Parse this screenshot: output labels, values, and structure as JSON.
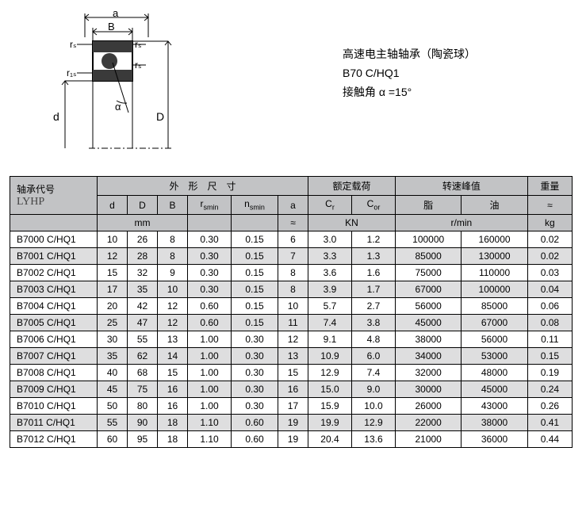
{
  "title": {
    "line1": "高速电主轴轴承（陶瓷球）",
    "line2": "B70  C/HQ1",
    "line3": "接触角 α =15°"
  },
  "diagram_labels": {
    "a": "a",
    "B": "B",
    "rs_tl": "rₛ",
    "rs_tr": "rₛ",
    "r1s": "r₁ₛ",
    "rs_r": "rₛ",
    "d": "d",
    "alpha": "α",
    "D": "D"
  },
  "table": {
    "header": {
      "model_title": "轴承代号",
      "brand": "LYHP",
      "group_dim": "外　形　尺　寸",
      "group_load": "额定载荷",
      "group_speed": "转速峰值",
      "group_weight": "重量",
      "d": "d",
      "D": "D",
      "B": "B",
      "rsmin": "rsmin",
      "nsmin": "nsmin",
      "a": "a",
      "Cr": "Cr",
      "Cor": "Cor",
      "grease": "脂",
      "oil": "油",
      "approx": "≈",
      "mm": "mm",
      "a_approx": "≈",
      "KN": "KN",
      "rpm": "r/min",
      "kg": "kg"
    },
    "rows": [
      {
        "model": "B7000  C/HQ1",
        "d": "10",
        "D": "26",
        "B": "8",
        "rsmin": "0.30",
        "nsmin": "0.15",
        "a": "6",
        "Cr": "3.0",
        "Cor": "1.2",
        "grease": "100000",
        "oil": "160000",
        "kg": "0.02"
      },
      {
        "model": "B7001  C/HQ1",
        "d": "12",
        "D": "28",
        "B": "8",
        "rsmin": "0.30",
        "nsmin": "0.15",
        "a": "7",
        "Cr": "3.3",
        "Cor": "1.3",
        "grease": "85000",
        "oil": "130000",
        "kg": "0.02"
      },
      {
        "model": "B7002  C/HQ1",
        "d": "15",
        "D": "32",
        "B": "9",
        "rsmin": "0.30",
        "nsmin": "0.15",
        "a": "8",
        "Cr": "3.6",
        "Cor": "1.6",
        "grease": "75000",
        "oil": "110000",
        "kg": "0.03"
      },
      {
        "model": "B7003  C/HQ1",
        "d": "17",
        "D": "35",
        "B": "10",
        "rsmin": "0.30",
        "nsmin": "0.15",
        "a": "8",
        "Cr": "3.9",
        "Cor": "1.7",
        "grease": "67000",
        "oil": "100000",
        "kg": "0.04"
      },
      {
        "model": "B7004  C/HQ1",
        "d": "20",
        "D": "42",
        "B": "12",
        "rsmin": "0.60",
        "nsmin": "0.15",
        "a": "10",
        "Cr": "5.7",
        "Cor": "2.7",
        "grease": "56000",
        "oil": "85000",
        "kg": "0.06"
      },
      {
        "model": "B7005  C/HQ1",
        "d": "25",
        "D": "47",
        "B": "12",
        "rsmin": "0.60",
        "nsmin": "0.15",
        "a": "11",
        "Cr": "7.4",
        "Cor": "3.8",
        "grease": "45000",
        "oil": "67000",
        "kg": "0.08"
      },
      {
        "model": "B7006  C/HQ1",
        "d": "30",
        "D": "55",
        "B": "13",
        "rsmin": "1.00",
        "nsmin": "0.30",
        "a": "12",
        "Cr": "9.1",
        "Cor": "4.8",
        "grease": "38000",
        "oil": "56000",
        "kg": "0.11"
      },
      {
        "model": "B7007  C/HQ1",
        "d": "35",
        "D": "62",
        "B": "14",
        "rsmin": "1.00",
        "nsmin": "0.30",
        "a": "13",
        "Cr": "10.9",
        "Cor": "6.0",
        "grease": "34000",
        "oil": "53000",
        "kg": "0.15"
      },
      {
        "model": "B7008  C/HQ1",
        "d": "40",
        "D": "68",
        "B": "15",
        "rsmin": "1.00",
        "nsmin": "0.30",
        "a": "15",
        "Cr": "12.9",
        "Cor": "7.4",
        "grease": "32000",
        "oil": "48000",
        "kg": "0.19"
      },
      {
        "model": "B7009  C/HQ1",
        "d": "45",
        "D": "75",
        "B": "16",
        "rsmin": "1.00",
        "nsmin": "0.30",
        "a": "16",
        "Cr": "15.0",
        "Cor": "9.0",
        "grease": "30000",
        "oil": "45000",
        "kg": "0.24"
      },
      {
        "model": "B7010  C/HQ1",
        "d": "50",
        "D": "80",
        "B": "16",
        "rsmin": "1.00",
        "nsmin": "0.30",
        "a": "17",
        "Cr": "15.9",
        "Cor": "10.0",
        "grease": "26000",
        "oil": "43000",
        "kg": "0.26"
      },
      {
        "model": "B7011  C/HQ1",
        "d": "55",
        "D": "90",
        "B": "18",
        "rsmin": "1.10",
        "nsmin": "0.60",
        "a": "19",
        "Cr": "19.9",
        "Cor": "12.9",
        "grease": "22000",
        "oil": "38000",
        "kg": "0.41"
      },
      {
        "model": "B7012  C/HQ1",
        "d": "60",
        "D": "95",
        "B": "18",
        "rsmin": "1.10",
        "nsmin": "0.60",
        "a": "19",
        "Cr": "20.4",
        "Cor": "13.6",
        "grease": "21000",
        "oil": "36000",
        "kg": "0.44"
      }
    ]
  },
  "colors": {
    "header_bg": "#c2c3c5",
    "row_odd_bg": "#dededf",
    "row_even_bg": "#ffffff",
    "border": "#000000",
    "text": "#000000",
    "diagram_fill": "#3a3a3a"
  }
}
